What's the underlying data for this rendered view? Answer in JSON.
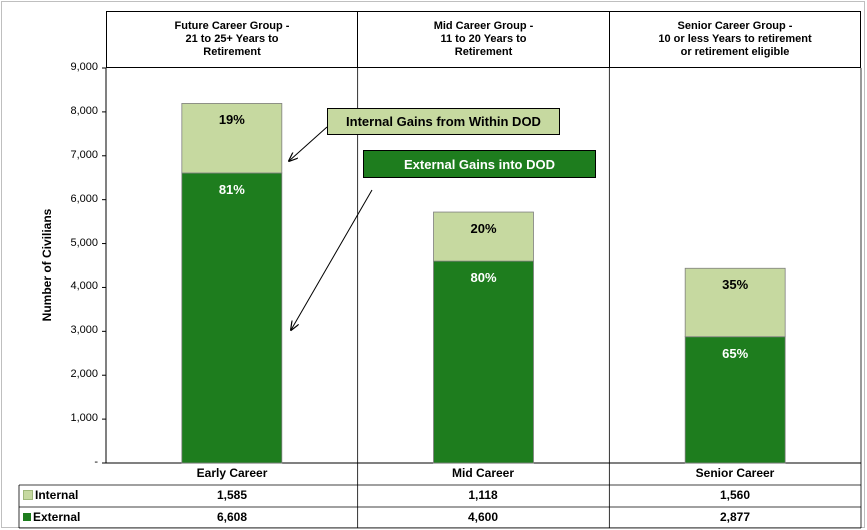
{
  "colors": {
    "internal": "#c6d9a0",
    "external": "#1e7d1e",
    "axis": "#000000",
    "grid": "#000000"
  },
  "headers": [
    "Future Career Group -\n21 to 25+ Years to\nRetirement",
    "Mid Career Group -\n11 to 20 Years to\nRetirement",
    "Senior Career Group -\n10 or less Years to retirement\nor retirement eligible"
  ],
  "callouts": {
    "internal": "Internal Gains from Within DOD",
    "external": "External Gains into DOD"
  },
  "chart_data": {
    "type": "bar",
    "stacked": true,
    "categories": [
      "Early Career",
      "Mid Career",
      "Senior Career"
    ],
    "series": [
      {
        "name": "External",
        "values": [
          6608,
          4600,
          2877
        ],
        "labels": [
          "81%",
          "80%",
          "65%"
        ],
        "display": [
          "6,608",
          "4,600",
          "2,877"
        ]
      },
      {
        "name": "Internal",
        "values": [
          1585,
          1118,
          1560
        ],
        "labels": [
          "19%",
          "20%",
          "35%"
        ],
        "display": [
          "1,585",
          "1,118",
          "1,560"
        ]
      }
    ],
    "ylabel": "Number of Civilians",
    "ylim": [
      0,
      9000
    ],
    "yticks": [
      0,
      1000,
      2000,
      3000,
      4000,
      5000,
      6000,
      7000,
      8000,
      9000
    ],
    "ytick_labels": [
      "-",
      "1,000",
      "2,000",
      "3,000",
      "4,000",
      "5,000",
      "6,000",
      "7,000",
      "8,000",
      "9,000"
    ],
    "data_table": true,
    "legend": "data-table"
  }
}
